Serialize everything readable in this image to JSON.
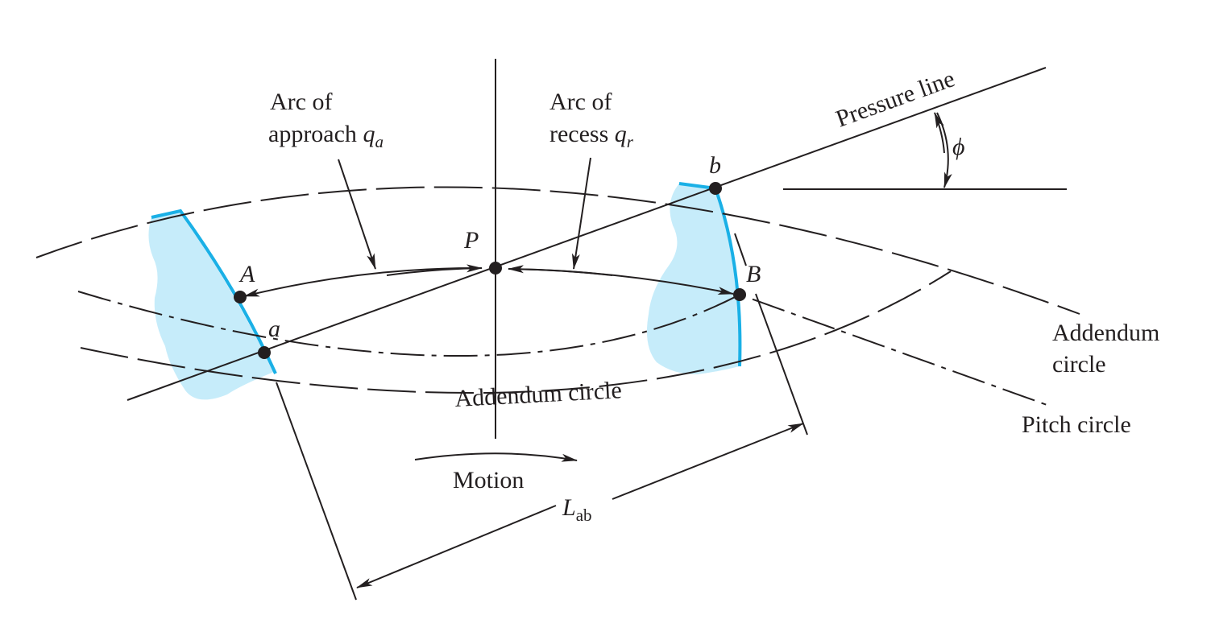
{
  "labels": {
    "arc_approach_line1": "Arc of",
    "arc_approach_line2": "approach ",
    "q": "q",
    "sub_a": "a",
    "arc_recess_line1": "Arc of",
    "arc_recess_line2": "recess ",
    "sub_r": "r",
    "pressure_line": "Pressure line",
    "phi": "ϕ",
    "point_P": "P",
    "point_A": "A",
    "point_a": "a",
    "point_B": "B",
    "point_b": "b",
    "addendum_circle_right_1": "Addendum",
    "addendum_circle_right_2": "circle",
    "pitch_circle": "Pitch circle",
    "addendum_circle_bottom": "Addendum circle",
    "motion": "Motion",
    "L": "L",
    "sub_ab": "ab"
  },
  "colors": {
    "line": "#231f20",
    "tooth_fill": "#c6ecfa",
    "tooth_flank": "#1ab0e6"
  }
}
